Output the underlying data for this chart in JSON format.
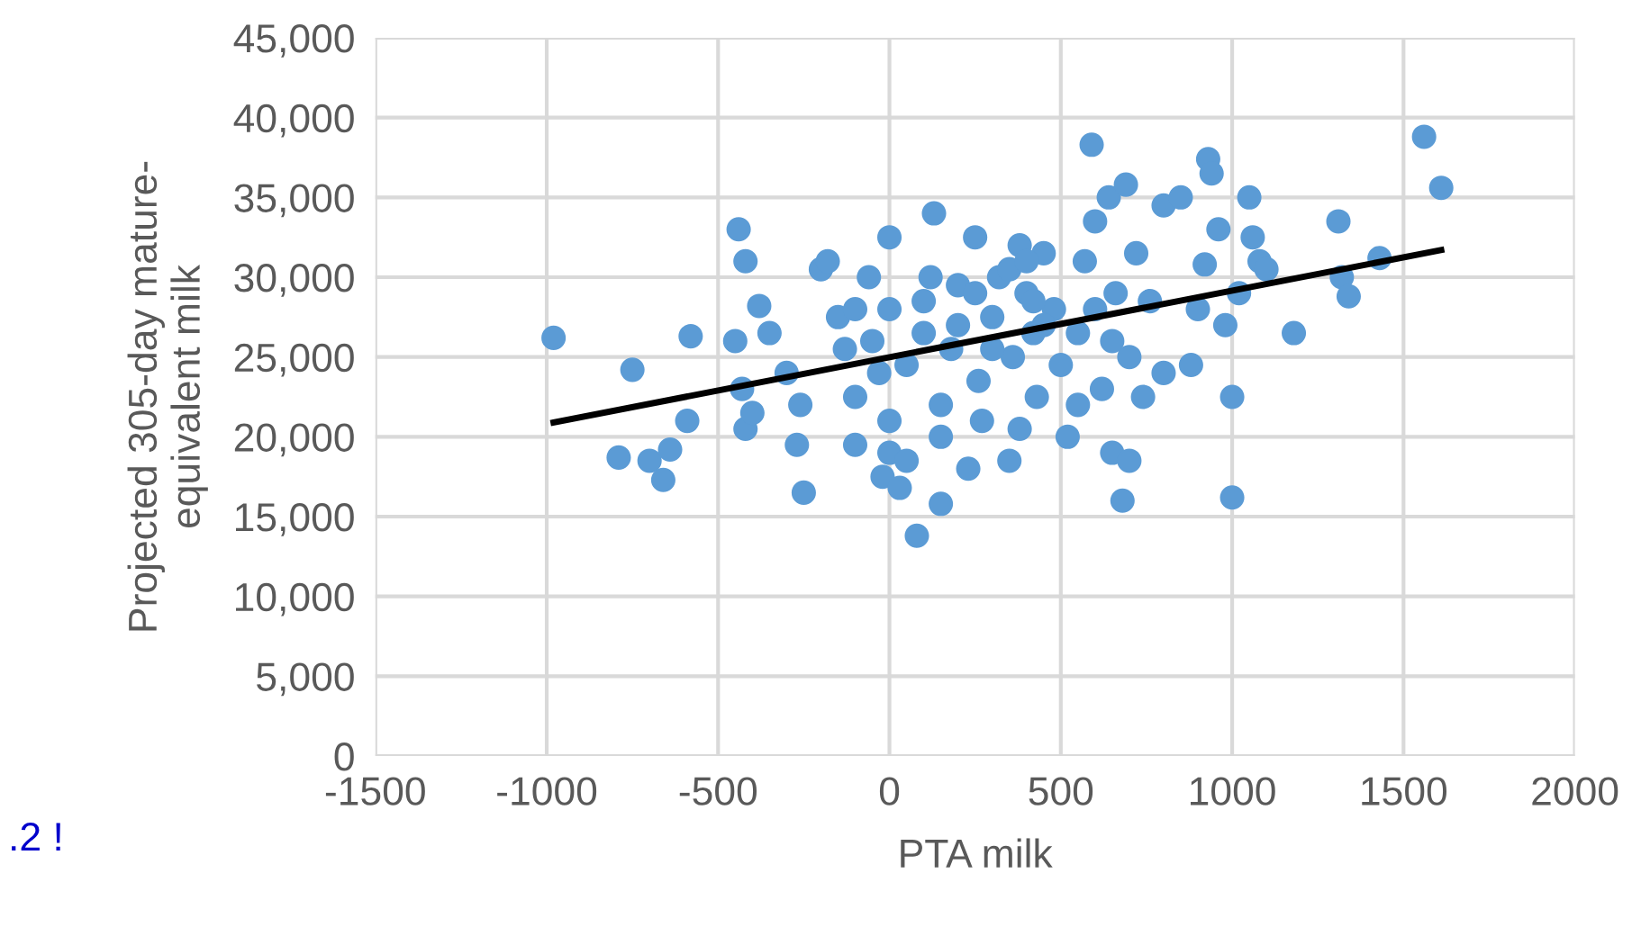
{
  "chart_data": {
    "type": "scatter",
    "xlabel": "PTA milk",
    "ylabel": "Projected 305-day mature-\nequivalent milk",
    "xlim": [
      -1500,
      2000
    ],
    "xticks": [
      -1500,
      -1000,
      -500,
      0,
      500,
      1000,
      1500,
      2000
    ],
    "ylim": [
      0,
      45000
    ],
    "yticks": [
      {
        "value": 0,
        "label": "0"
      },
      {
        "value": 5000,
        "label": "5,000"
      },
      {
        "value": 10000,
        "label": "10,000"
      },
      {
        "value": 15000,
        "label": "15,000"
      },
      {
        "value": 20000,
        "label": "20,000"
      },
      {
        "value": 25000,
        "label": "25,000"
      },
      {
        "value": 30000,
        "label": "30,000"
      },
      {
        "value": 35000,
        "label": "35,000"
      },
      {
        "value": 40000,
        "label": "40,000"
      },
      {
        "value": 45000,
        "label": "45,000"
      }
    ],
    "grid": true,
    "marker": "circle",
    "annotations": [
      ".2 !"
    ],
    "series": [
      {
        "color": "#5b9bd5",
        "x": [
          -980,
          -750,
          -790,
          -700,
          -660,
          -640,
          -580,
          -590,
          -440,
          -420,
          -450,
          -430,
          -420,
          -400,
          -380,
          -350,
          -300,
          -270,
          -250,
          -260,
          -200,
          -180,
          -150,
          -130,
          -100,
          -100,
          -60,
          -50,
          -30,
          0,
          0,
          0,
          0,
          -20,
          30,
          50,
          80,
          100,
          120,
          130,
          150,
          150,
          180,
          200,
          230,
          250,
          260,
          270,
          300,
          320,
          350,
          360,
          380,
          400,
          420,
          430,
          450,
          480,
          500,
          520,
          550,
          570,
          590,
          600,
          620,
          640,
          650,
          660,
          680,
          690,
          700,
          700,
          720,
          740,
          760,
          800,
          800,
          850,
          880,
          900,
          920,
          930,
          940,
          960,
          980,
          1000,
          1000,
          1020,
          1050,
          1060,
          1080,
          1100,
          1180,
          1310,
          1320,
          1340,
          1430,
          1560,
          1610,
          100,
          200,
          250,
          300,
          350,
          400,
          420,
          450,
          380,
          150,
          -100,
          50,
          600,
          650,
          550
        ],
        "values": [
          26200,
          24200,
          18700,
          18500,
          17300,
          19200,
          26300,
          21000,
          33000,
          31000,
          26000,
          23000,
          20500,
          21500,
          28200,
          26500,
          24000,
          19500,
          16500,
          22000,
          30500,
          31000,
          27500,
          25500,
          22500,
          19500,
          30000,
          26000,
          24000,
          32500,
          28000,
          21000,
          19000,
          17500,
          16800,
          18500,
          13800,
          26500,
          30000,
          34000,
          22000,
          15800,
          25500,
          29500,
          18000,
          32500,
          23500,
          21000,
          27500,
          30000,
          18500,
          25000,
          32000,
          29000,
          26500,
          22500,
          31500,
          28000,
          24500,
          20000,
          26500,
          31000,
          38300,
          33500,
          23000,
          35000,
          19000,
          29000,
          16000,
          35800,
          25000,
          18500,
          31500,
          22500,
          28500,
          34500,
          24000,
          35000,
          24500,
          28000,
          30800,
          37400,
          36500,
          33000,
          27000,
          16200,
          22500,
          29000,
          35000,
          32500,
          31000,
          30500,
          26500,
          33500,
          30000,
          28800,
          31200,
          38800,
          35600,
          28500,
          27000,
          29000,
          25500,
          30500,
          31000,
          28500,
          27000,
          20500,
          20000,
          28000,
          24500,
          28000,
          26000,
          22000
        ]
      },
      {
        "type": "line",
        "color": "#000000",
        "marker": "none",
        "x": [
          -980,
          1610
        ],
        "values": [
          20900,
          31700
        ]
      }
    ]
  }
}
